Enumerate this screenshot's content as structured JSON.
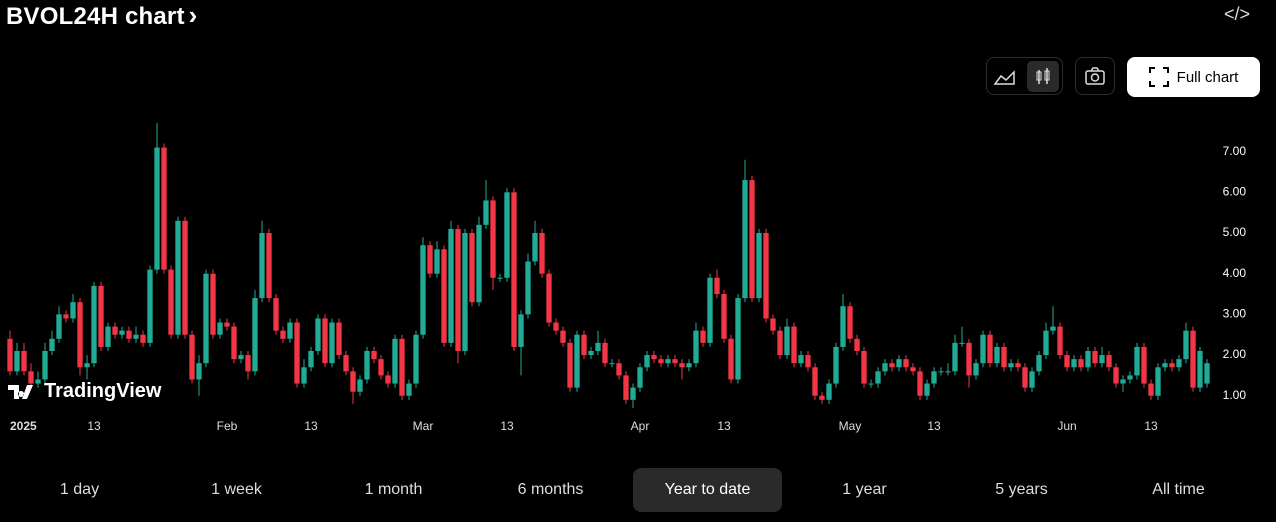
{
  "header": {
    "title": "BVOL24H chart"
  },
  "toolbar": {
    "full_chart": "Full chart"
  },
  "watermark": "TradingView",
  "ranges": [
    {
      "label": "1 day",
      "selected": false
    },
    {
      "label": "1 week",
      "selected": false
    },
    {
      "label": "1 month",
      "selected": false
    },
    {
      "label": "6 months",
      "selected": false
    },
    {
      "label": "Year to date",
      "selected": true
    },
    {
      "label": "1 year",
      "selected": false
    },
    {
      "label": "5 years",
      "selected": false
    },
    {
      "label": "All time",
      "selected": false
    }
  ],
  "chart_data": {
    "type": "candlestick",
    "up_color": "#22ab94",
    "down_color": "#f23645",
    "ylim": [
      0.65,
      7.9
    ],
    "yticks": [
      {
        "value": 1,
        "label": "1.00"
      },
      {
        "value": 2,
        "label": "2.00"
      },
      {
        "value": 3,
        "label": "3.00"
      },
      {
        "value": 4,
        "label": "4.00"
      },
      {
        "value": 5,
        "label": "5.00"
      },
      {
        "value": 6,
        "label": "6.00"
      },
      {
        "value": 7,
        "label": "7.00"
      }
    ],
    "xlim": [
      -1,
      172
    ],
    "xticks": [
      {
        "value": 0,
        "label": "2025"
      },
      {
        "value": 12,
        "label": "13"
      },
      {
        "value": 31,
        "label": "Feb"
      },
      {
        "value": 43,
        "label": "13"
      },
      {
        "value": 59,
        "label": "Mar"
      },
      {
        "value": 71,
        "label": "13"
      },
      {
        "value": 90,
        "label": "Apr"
      },
      {
        "value": 102,
        "label": "13"
      },
      {
        "value": 120,
        "label": "May"
      },
      {
        "value": 132,
        "label": "13"
      },
      {
        "value": 151,
        "label": "Jun"
      },
      {
        "value": 163,
        "label": "13"
      }
    ],
    "open": [
      2.4,
      1.6,
      2.1,
      1.6,
      1.3,
      1.4,
      2.1,
      2.4,
      3.0,
      2.9,
      3.3,
      1.7,
      1.8,
      3.7,
      2.2,
      2.7,
      2.5,
      2.6,
      2.4,
      2.5,
      2.3,
      4.1,
      7.1,
      4.1,
      2.5,
      5.3,
      2.5,
      1.4,
      1.8,
      4.0,
      2.5,
      2.8,
      2.7,
      1.9,
      2.0,
      1.6,
      3.4,
      5.0,
      3.4,
      2.6,
      2.4,
      2.8,
      1.3,
      1.7,
      2.1,
      2.9,
      1.8,
      2.8,
      2.0,
      1.6,
      1.1,
      1.4,
      2.1,
      1.9,
      1.5,
      1.3,
      2.4,
      1.0,
      1.3,
      2.5,
      4.7,
      4.0,
      4.6,
      2.3,
      5.1,
      2.1,
      5.0,
      3.3,
      5.2,
      5.8,
      3.9,
      3.9,
      6.0,
      2.2,
      3.0,
      4.3,
      5.0,
      4.0,
      2.8,
      2.6,
      2.3,
      1.2,
      2.5,
      2.0,
      2.1,
      2.3,
      1.8,
      1.8,
      1.5,
      0.9,
      1.2,
      1.7,
      2.0,
      1.9,
      1.8,
      1.9,
      1.8,
      1.7,
      1.8,
      2.6,
      2.3,
      3.9,
      3.5,
      2.4,
      1.4,
      3.4,
      6.3,
      3.4,
      5.0,
      2.9,
      2.6,
      2.0,
      2.7,
      1.8,
      2.0,
      1.7,
      1.0,
      0.9,
      1.3,
      2.2,
      3.2,
      2.4,
      2.1,
      1.3,
      1.3,
      1.6,
      1.8,
      1.7,
      1.9,
      1.7,
      1.6,
      1.0,
      1.3,
      1.6,
      1.6,
      1.6,
      2.3,
      2.3,
      1.5,
      1.8,
      2.5,
      1.8,
      2.2,
      1.7,
      1.8,
      1.7,
      1.2,
      1.6,
      2.0,
      2.6,
      2.7,
      2.0,
      1.7,
      1.9,
      1.7,
      2.1,
      1.8,
      2.0,
      1.7,
      1.3,
      1.4,
      1.5,
      2.2,
      1.3,
      1.0,
      1.7,
      1.8,
      1.7,
      1.9,
      2.6,
      1.2,
      1.3
    ],
    "high": [
      2.6,
      2.3,
      2.3,
      1.8,
      1.6,
      2.3,
      2.6,
      3.2,
      3.1,
      3.5,
      3.4,
      2.0,
      3.8,
      3.8,
      2.8,
      2.8,
      2.7,
      2.7,
      2.7,
      2.6,
      4.2,
      7.7,
      7.2,
      4.2,
      5.4,
      5.4,
      2.6,
      2.0,
      4.1,
      4.1,
      2.9,
      2.9,
      2.8,
      2.1,
      2.1,
      3.6,
      5.3,
      5.1,
      3.5,
      2.7,
      2.9,
      2.9,
      1.9,
      2.2,
      3.0,
      3.0,
      2.9,
      2.9,
      2.1,
      1.7,
      1.5,
      2.2,
      2.2,
      2.0,
      1.6,
      2.5,
      2.5,
      1.4,
      2.6,
      4.9,
      4.8,
      4.8,
      4.7,
      5.3,
      5.2,
      5.1,
      5.1,
      5.4,
      6.3,
      5.9,
      4.0,
      6.1,
      6.1,
      3.1,
      4.5,
      5.3,
      5.1,
      4.1,
      2.9,
      2.7,
      2.4,
      2.6,
      2.6,
      2.2,
      2.6,
      2.4,
      1.9,
      1.9,
      1.6,
      1.3,
      1.8,
      2.1,
      2.1,
      2.0,
      2.0,
      2.0,
      1.9,
      1.9,
      2.8,
      2.7,
      4.0,
      4.1,
      3.6,
      2.5,
      3.5,
      6.8,
      6.4,
      5.1,
      5.1,
      3.0,
      2.7,
      2.9,
      2.8,
      2.1,
      2.1,
      1.8,
      1.1,
      1.4,
      2.3,
      3.5,
      3.3,
      2.5,
      2.2,
      1.4,
      1.7,
      1.9,
      1.9,
      2.0,
      2.0,
      1.8,
      1.7,
      1.4,
      1.7,
      1.7,
      1.8,
      2.5,
      2.7,
      2.4,
      1.9,
      2.6,
      2.6,
      2.3,
      2.3,
      1.9,
      1.9,
      1.8,
      1.7,
      2.1,
      2.8,
      3.2,
      2.8,
      2.1,
      2.0,
      2.0,
      2.2,
      2.2,
      2.2,
      2.1,
      1.8,
      1.5,
      1.6,
      2.3,
      2.3,
      1.4,
      1.8,
      1.9,
      1.9,
      2.0,
      2.8,
      2.7,
      2.2,
      1.9
    ],
    "low": [
      1.5,
      1.5,
      1.5,
      1.2,
      1.2,
      1.3,
      2.0,
      2.3,
      2.8,
      2.8,
      1.5,
      1.4,
      1.7,
      2.1,
      2.1,
      2.4,
      2.4,
      2.3,
      2.3,
      2.2,
      2.2,
      4.0,
      4.0,
      2.4,
      2.4,
      2.4,
      1.3,
      1.0,
      1.7,
      2.4,
      2.4,
      2.6,
      1.8,
      1.8,
      1.4,
      1.5,
      3.3,
      3.3,
      2.5,
      2.3,
      2.3,
      1.2,
      1.2,
      1.6,
      2.0,
      1.7,
      1.7,
      1.9,
      1.5,
      0.8,
      1.0,
      1.3,
      1.8,
      1.4,
      1.2,
      1.2,
      0.9,
      0.9,
      1.2,
      2.4,
      3.9,
      3.9,
      2.2,
      2.2,
      1.8,
      2.0,
      3.2,
      3.2,
      5.1,
      3.6,
      3.8,
      3.8,
      2.1,
      1.5,
      2.9,
      4.2,
      3.9,
      2.7,
      2.5,
      2.2,
      1.1,
      1.1,
      1.9,
      1.9,
      2.0,
      1.7,
      1.7,
      1.4,
      0.8,
      0.7,
      1.1,
      1.6,
      1.8,
      1.7,
      1.7,
      1.7,
      1.4,
      1.6,
      1.7,
      2.2,
      2.2,
      3.4,
      2.3,
      1.3,
      1.3,
      3.3,
      3.3,
      3.3,
      2.8,
      2.5,
      1.9,
      1.9,
      1.7,
      1.7,
      1.6,
      0.9,
      0.8,
      0.8,
      1.2,
      2.1,
      2.3,
      2.0,
      1.2,
      1.2,
      1.2,
      1.5,
      1.6,
      1.6,
      1.6,
      1.5,
      0.9,
      0.9,
      1.2,
      1.5,
      1.5,
      1.5,
      2.2,
      1.2,
      1.4,
      1.7,
      1.7,
      1.7,
      1.6,
      1.6,
      1.6,
      1.1,
      1.1,
      1.5,
      1.9,
      2.5,
      1.9,
      1.6,
      1.6,
      1.6,
      1.6,
      1.7,
      1.7,
      1.6,
      1.2,
      1.1,
      1.3,
      1.4,
      1.2,
      0.9,
      0.9,
      1.6,
      1.6,
      1.6,
      1.8,
      1.1,
      1.1,
      1.2
    ],
    "close": [
      1.6,
      2.1,
      1.6,
      1.3,
      1.4,
      2.1,
      2.4,
      3.0,
      2.9,
      3.3,
      1.7,
      1.8,
      3.7,
      2.2,
      2.7,
      2.5,
      2.6,
      2.4,
      2.5,
      2.3,
      4.1,
      7.1,
      4.1,
      2.5,
      5.3,
      2.5,
      1.4,
      1.8,
      4.0,
      2.5,
      2.8,
      2.7,
      1.9,
      2.0,
      1.6,
      3.4,
      5.0,
      3.4,
      2.6,
      2.4,
      2.8,
      1.3,
      1.7,
      2.1,
      2.9,
      1.8,
      2.8,
      2.0,
      1.6,
      1.1,
      1.4,
      2.1,
      1.9,
      1.5,
      1.3,
      2.4,
      1.0,
      1.3,
      2.5,
      4.7,
      4.0,
      4.6,
      2.3,
      5.1,
      2.1,
      5.0,
      3.3,
      5.2,
      5.8,
      3.9,
      3.9,
      6.0,
      2.2,
      3.0,
      4.3,
      5.0,
      4.0,
      2.8,
      2.6,
      2.3,
      1.2,
      2.5,
      2.0,
      2.1,
      2.3,
      1.8,
      1.8,
      1.5,
      0.9,
      1.2,
      1.7,
      2.0,
      1.9,
      1.8,
      1.9,
      1.8,
      1.7,
      1.8,
      2.6,
      2.3,
      3.9,
      3.5,
      2.4,
      1.4,
      3.4,
      6.3,
      3.4,
      5.0,
      2.9,
      2.6,
      2.0,
      2.7,
      1.8,
      2.0,
      1.7,
      1.0,
      0.9,
      1.3,
      2.2,
      3.2,
      2.4,
      2.1,
      1.3,
      1.3,
      1.6,
      1.8,
      1.7,
      1.9,
      1.7,
      1.6,
      1.0,
      1.3,
      1.6,
      1.6,
      1.6,
      2.3,
      2.3,
      1.5,
      1.8,
      2.5,
      1.8,
      2.2,
      1.7,
      1.8,
      1.7,
      1.2,
      1.6,
      2.0,
      2.6,
      2.7,
      2.0,
      1.7,
      1.9,
      1.7,
      2.1,
      1.8,
      2.0,
      1.7,
      1.3,
      1.4,
      1.5,
      2.2,
      1.3,
      1.0,
      1.7,
      1.8,
      1.7,
      1.9,
      2.6,
      1.2,
      2.1,
      1.8
    ]
  }
}
